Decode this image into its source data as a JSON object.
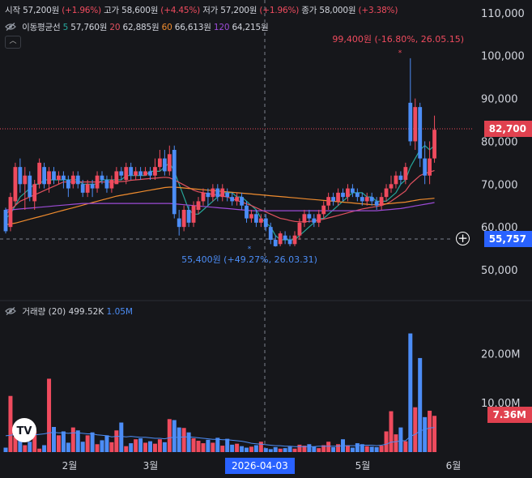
{
  "ohlc": {
    "open_label": "시작",
    "open": "57,200원",
    "open_pct": "(+1.96%)",
    "high_label": "고가",
    "high": "58,600원",
    "high_pct": "(+4.45%)",
    "low_label": "저가",
    "low": "57,200원",
    "low_pct": "(+1.96%)",
    "close_label": "종가",
    "close": "58,000원",
    "close_pct": "(+3.38%)"
  },
  "ma_legend": {
    "title": "이동평균선",
    "ma5_period": "5",
    "ma5_value": "57,760원",
    "ma20_period": "20",
    "ma20_value": "62,885원",
    "ma60_period": "60",
    "ma60_value": "66,613원",
    "ma120_period": "120",
    "ma120_value": "64,215원"
  },
  "volume_legend": {
    "title": "거래량 (20)",
    "value": "499.52K",
    "ma_value": "1.05M"
  },
  "price_axis": {
    "ticks": [
      "110,000",
      "100,000",
      "90,000",
      "80,000",
      "70,000",
      "60,000",
      "50,000"
    ],
    "tick_values": [
      110000,
      100000,
      90000,
      80000,
      70000,
      60000,
      50000
    ]
  },
  "volume_axis": {
    "ticks": [
      "20.00M",
      "10.00M"
    ],
    "tick_values": [
      20000000,
      10000000
    ]
  },
  "time_axis": {
    "labels": [
      "2월",
      "3월",
      "5월",
      "6월"
    ],
    "crosshair_label": "2026-04-03"
  },
  "current_price_tag": "82,700",
  "crosshair_price_tag": "55,757",
  "volume_tag": "7.36M",
  "annotations": {
    "high_note": "99,400원 (-16.80%, 26.05.15)",
    "low_note": "55,400원 (+49.27%, 26.03.31)"
  },
  "colors": {
    "up": "#ef4b5e",
    "down": "#4c8df6",
    "ma5": "#26a69a",
    "ma20": "#e0515f",
    "ma60": "#f08c2e",
    "ma120": "#9c4bd6",
    "accent": "#2962ff"
  },
  "chart_data": {
    "type": "candlestick",
    "title": "",
    "price_range": [
      43000,
      113000
    ],
    "volume_range": [
      0,
      26000000
    ],
    "candles": [
      [
        64,
        59,
        64.5,
        58.5
      ],
      [
        60,
        67,
        68,
        59
      ],
      [
        66,
        74,
        75,
        65
      ],
      [
        74,
        70,
        76,
        68
      ],
      [
        70,
        72,
        74,
        64
      ],
      [
        72,
        67,
        73,
        66
      ],
      [
        66,
        70,
        71,
        64
      ],
      [
        70,
        75,
        76,
        69
      ],
      [
        74,
        70,
        75,
        69
      ],
      [
        70,
        73,
        74,
        68
      ],
      [
        73,
        71,
        74,
        70
      ],
      [
        71,
        72,
        73,
        70
      ],
      [
        72,
        71,
        73,
        69
      ],
      [
        71,
        69,
        72,
        67
      ],
      [
        70,
        72,
        73,
        69
      ],
      [
        72,
        70,
        73,
        69
      ],
      [
        70,
        68,
        71,
        67
      ],
      [
        68,
        70,
        71,
        67
      ],
      [
        70,
        69,
        71,
        67
      ],
      [
        69,
        72,
        73,
        68
      ],
      [
        72,
        71,
        73,
        70
      ],
      [
        71,
        69,
        72,
        68
      ],
      [
        69,
        71,
        72,
        68
      ],
      [
        70,
        73,
        74,
        70
      ],
      [
        73,
        72,
        74,
        71
      ],
      [
        71,
        74,
        75,
        70
      ],
      [
        74,
        72,
        75,
        71
      ],
      [
        72,
        73,
        74,
        71
      ],
      [
        73,
        72,
        74,
        71
      ],
      [
        72,
        73,
        74,
        72
      ],
      [
        73,
        72,
        74,
        71
      ],
      [
        72,
        74,
        76,
        71
      ],
      [
        74,
        76,
        78,
        73
      ],
      [
        76,
        73,
        78,
        72
      ],
      [
        73,
        77,
        79,
        72
      ],
      [
        78,
        63,
        79,
        62
      ],
      [
        62,
        60,
        64,
        58
      ],
      [
        60,
        64,
        65,
        59
      ],
      [
        64,
        61,
        65,
        60
      ],
      [
        61,
        65,
        66,
        60
      ],
      [
        64,
        66,
        67,
        63
      ],
      [
        66,
        68,
        69,
        65
      ],
      [
        68,
        67,
        69,
        65
      ],
      [
        67,
        69,
        70,
        66
      ],
      [
        69,
        67,
        70,
        66
      ],
      [
        67,
        69,
        70,
        66
      ],
      [
        68,
        67,
        69,
        66
      ],
      [
        67,
        66,
        68,
        65
      ],
      [
        66,
        67,
        68,
        65
      ],
      [
        67,
        65,
        68,
        64
      ],
      [
        65,
        62,
        66,
        61
      ],
      [
        62,
        63,
        64,
        61
      ],
      [
        63,
        61,
        64,
        60
      ],
      [
        61,
        62,
        63,
        60
      ],
      [
        62,
        60,
        63,
        59
      ],
      [
        60,
        57,
        61,
        56
      ],
      [
        57,
        55.5,
        58,
        55.4
      ],
      [
        56,
        58.5,
        59,
        55.5
      ],
      [
        58,
        57,
        59,
        56
      ],
      [
        57,
        56,
        58,
        55.5
      ],
      [
        56,
        58,
        59,
        55.5
      ],
      [
        58,
        61,
        62,
        57
      ],
      [
        61,
        63,
        64,
        60
      ],
      [
        63,
        62,
        64,
        61
      ],
      [
        62,
        61,
        63,
        60
      ],
      [
        61,
        63,
        64,
        60
      ],
      [
        63,
        65,
        66,
        62
      ],
      [
        65,
        67,
        68,
        64
      ],
      [
        67,
        66,
        68,
        65
      ],
      [
        66,
        68,
        69,
        65
      ],
      [
        68,
        67,
        69,
        66
      ],
      [
        67,
        69,
        70,
        66
      ],
      [
        69,
        68,
        70,
        67
      ],
      [
        68,
        67,
        69,
        66
      ],
      [
        67,
        66,
        68,
        65
      ],
      [
        66,
        67,
        68,
        65
      ],
      [
        67,
        66,
        68,
        65
      ],
      [
        66,
        65,
        67,
        64
      ],
      [
        65,
        67,
        68,
        64
      ],
      [
        67,
        69,
        70,
        66
      ],
      [
        69,
        70,
        72,
        68
      ],
      [
        70,
        72,
        73,
        69
      ],
      [
        72,
        71,
        73,
        70
      ],
      [
        71,
        74,
        75,
        70
      ],
      [
        89,
        80,
        99.4,
        79
      ],
      [
        80,
        88,
        90,
        78
      ],
      [
        88,
        76,
        89,
        74
      ],
      [
        76,
        72,
        80,
        70
      ],
      [
        72,
        76,
        80,
        70
      ],
      [
        76,
        82.7,
        86,
        75
      ]
    ],
    "candle_unit": "thousand KRW",
    "volume": [
      0.9,
      11.4,
      3.1,
      2.8,
      1.4,
      2.1,
      4.3,
      0.7,
      1.4,
      14.9,
      5.1,
      3.4,
      4.2,
      1.9,
      5.0,
      4.4,
      2.1,
      3.4,
      4.0,
      1.6,
      2.4,
      3.4,
      2.0,
      4.4,
      6.0,
      1.2,
      1.8,
      2.6,
      2.8,
      1.9,
      2.2,
      1.7,
      2.6,
      2.0,
      6.7,
      6.5,
      5.0,
      4.9,
      4.0,
      2.8,
      2.3,
      1.8,
      2.5,
      1.9,
      2.9,
      1.3,
      2.7,
      1.5,
      1.7,
      1.2,
      0.9,
      1.1,
      1.4,
      2.1,
      0.8,
      0.6,
      1.0,
      0.7,
      0.8,
      1.1,
      0.7,
      1.5,
      1.3,
      1.6,
      1.1,
      0.8,
      1.4,
      2.1,
      1.0,
      1.6,
      2.6,
      1.4,
      0.9,
      1.8,
      1.6,
      1.2,
      1.1,
      1.0,
      1.3,
      4.2,
      8.3,
      3.6,
      5.0,
      2.2,
      24.1,
      9.1,
      19.1,
      7.1,
      8.4,
      7.36
    ],
    "volume_unit": "M",
    "ma_volume": [
      3.3,
      3.4,
      3.6,
      3.7,
      3.6,
      3.6,
      3.5,
      3.6,
      3.7,
      3.9,
      4.0,
      3.9,
      3.9,
      3.8,
      3.9,
      3.9,
      3.8,
      3.7,
      3.7,
      3.5,
      3.4,
      3.3,
      3.1,
      3.2,
      3.2,
      3.1,
      3.2,
      3.1,
      3.0,
      3.0,
      2.9,
      2.8,
      2.8,
      2.7,
      2.9,
      3.0,
      3.0,
      3.1,
      3.1,
      3.0,
      2.9,
      2.8,
      2.7,
      2.6,
      2.6,
      2.5,
      2.5,
      2.4,
      2.3,
      2.2,
      2.0,
      1.8,
      1.7,
      1.6,
      1.5,
      1.4,
      1.3,
      1.3,
      1.2,
      1.2,
      1.1,
      1.1,
      1.1,
      1.1,
      1.1,
      1.2,
      1.2,
      1.2,
      1.2,
      1.2,
      1.3,
      1.3,
      1.3,
      1.3,
      1.4,
      1.4,
      1.4,
      1.3,
      1.4,
      1.6,
      2.0,
      2.1,
      2.3,
      2.3,
      3.2,
      3.6,
      4.3,
      4.6,
      4.9,
      5.0
    ],
    "moving_averages": {
      "ma5": [
        62,
        63,
        65,
        67,
        68,
        69,
        70,
        70,
        71,
        71,
        71,
        71,
        71,
        71,
        71,
        71,
        70,
        70,
        70,
        70,
        71,
        71,
        71,
        71,
        71,
        72,
        72,
        72,
        72,
        72,
        73,
        73,
        73,
        74,
        75,
        73,
        70,
        67,
        64,
        63,
        63,
        64,
        65,
        66,
        67,
        68,
        68,
        68,
        67,
        67,
        66,
        65,
        64,
        62,
        61,
        60,
        58,
        57,
        57,
        57,
        57,
        58,
        59,
        60,
        61,
        62,
        62,
        63,
        64,
        65,
        66,
        67,
        68,
        68,
        68,
        67,
        67,
        66,
        66,
        66,
        67,
        68,
        70,
        71,
        74,
        76,
        78,
        79,
        78,
        79
      ],
      "ma20": [
        63,
        64,
        65,
        66,
        66.5,
        67,
        67.5,
        68,
        68.5,
        69,
        69.5,
        70,
        70.5,
        70.5,
        70.5,
        70.5,
        70.5,
        70.5,
        70.5,
        70.5,
        70.5,
        70.5,
        70.5,
        70.5,
        70.6,
        70.7,
        70.9,
        71,
        71.1,
        71.2,
        71.3,
        71.4,
        71.5,
        71.6,
        71.5,
        71,
        70.4,
        69.8,
        69.2,
        68.6,
        68.2,
        68,
        67.8,
        67.6,
        67.4,
        67.2,
        67,
        66.6,
        66.2,
        65.8,
        65.4,
        65,
        64.5,
        64,
        63.5,
        63,
        62.5,
        62,
        61.8,
        61.5,
        61.3,
        61.2,
        61.2,
        61.3,
        61.4,
        61.6,
        61.8,
        62.1,
        62.4,
        62.7,
        63,
        63.3,
        63.6,
        63.9,
        64.2,
        64.4,
        64.6,
        64.8,
        65,
        65.4,
        66,
        66.8,
        67.6,
        68.4,
        70,
        71,
        72,
        72.5,
        72.8,
        73.2
      ],
      "ma60": [
        60.5,
        60.7,
        60.9,
        61.2,
        61.5,
        61.8,
        62.1,
        62.4,
        62.7,
        63,
        63.3,
        63.6,
        63.9,
        64.2,
        64.5,
        64.8,
        65.1,
        65.4,
        65.7,
        66,
        66.3,
        66.6,
        66.9,
        67.2,
        67.4,
        67.6,
        67.8,
        68,
        68.2,
        68.4,
        68.6,
        68.8,
        69,
        69.2,
        69.3,
        69.3,
        69.2,
        69.1,
        69,
        68.9,
        68.8,
        68.7,
        68.6,
        68.5,
        68.4,
        68.3,
        68.2,
        68.1,
        68,
        67.9,
        67.8,
        67.7,
        67.6,
        67.5,
        67.4,
        67.3,
        67.2,
        67.1,
        67,
        66.9,
        66.8,
        66.7,
        66.6,
        66.5,
        66.4,
        66.3,
        66.2,
        66.1,
        66,
        65.9,
        65.8,
        65.7,
        65.6,
        65.5,
        65.4,
        65.3,
        65.2,
        65.2,
        65.3,
        65.4,
        65.5,
        65.6,
        65.7,
        65.8,
        66,
        66.2,
        66.4,
        66.5,
        66.6,
        66.7
      ],
      "ma120": [
        64,
        64,
        64.1,
        64.2,
        64.3,
        64.4,
        64.5,
        64.6,
        64.7,
        64.8,
        64.9,
        65,
        65.1,
        65.2,
        65.3,
        65.4,
        65.5,
        65.5,
        65.5,
        65.5,
        65.5,
        65.5,
        65.5,
        65.5,
        65.5,
        65.5,
        65.5,
        65.5,
        65.5,
        65.5,
        65.5,
        65.5,
        65.5,
        65.5,
        65.5,
        65.4,
        65.3,
        65.2,
        65.1,
        65,
        64.9,
        64.8,
        64.7,
        64.6,
        64.5,
        64.4,
        64.3,
        64.2,
        64.1,
        64,
        63.9,
        63.8,
        63.8,
        63.8,
        63.8,
        63.8,
        63.8,
        63.8,
        63.8,
        63.8,
        63.8,
        63.8,
        63.8,
        63.8,
        63.8,
        63.8,
        63.8,
        63.8,
        63.8,
        63.8,
        63.8,
        63.8,
        63.8,
        63.8,
        63.8,
        63.8,
        63.8,
        63.8,
        63.9,
        64,
        64.1,
        64.2,
        64.3,
        64.5,
        64.7,
        64.9,
        65.1,
        65.3,
        65.5,
        65.7
      ]
    },
    "x_labels": [
      "2월",
      "3월",
      "5월",
      "6월"
    ],
    "legend_placement": "top-left",
    "grid": false
  }
}
